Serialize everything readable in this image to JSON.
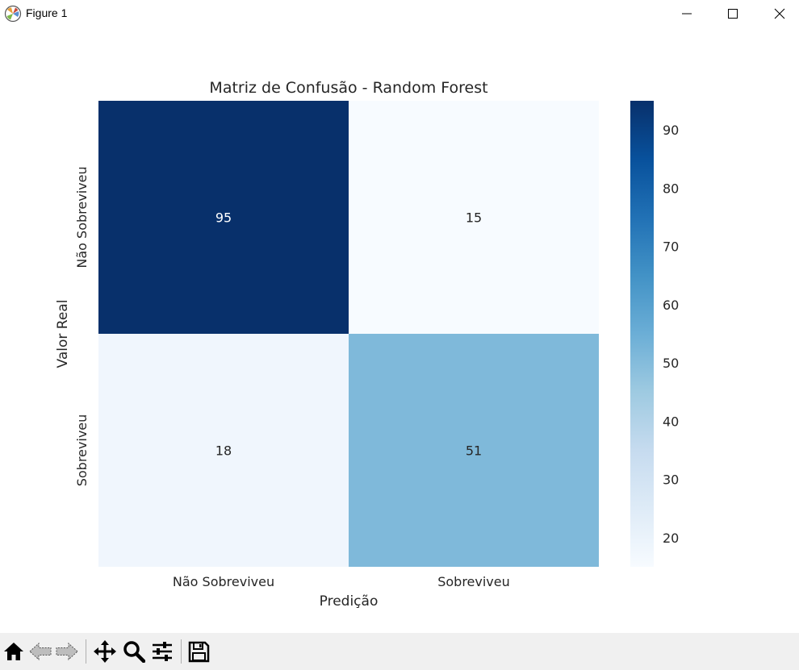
{
  "window": {
    "title": "Figure 1",
    "icons": [
      "matplotlib-icon",
      "minimize-icon",
      "maximize-icon",
      "close-icon"
    ]
  },
  "toolbar": {
    "buttons": [
      "home-icon",
      "back-icon",
      "forward-icon",
      "pan-icon",
      "zoom-icon",
      "configure-subplots-icon",
      "save-icon"
    ]
  },
  "chart_data": {
    "type": "heatmap",
    "title": "Matriz de Confusão - Random Forest",
    "xlabel": "Predição",
    "ylabel": "Valor Real",
    "x_categories": [
      "Não Sobreviveu",
      "Sobreviveu"
    ],
    "y_categories": [
      "Não Sobreviveu",
      "Sobreviveu"
    ],
    "values": [
      [
        95,
        15
      ],
      [
        18,
        51
      ]
    ],
    "colormap": "Blues",
    "colorbar": {
      "min": 15,
      "max": 95,
      "ticks": [
        20,
        30,
        40,
        50,
        60,
        70,
        80,
        90
      ]
    },
    "cell_text_colors": {
      "dark": "#ffffff",
      "light": "#262626"
    }
  }
}
